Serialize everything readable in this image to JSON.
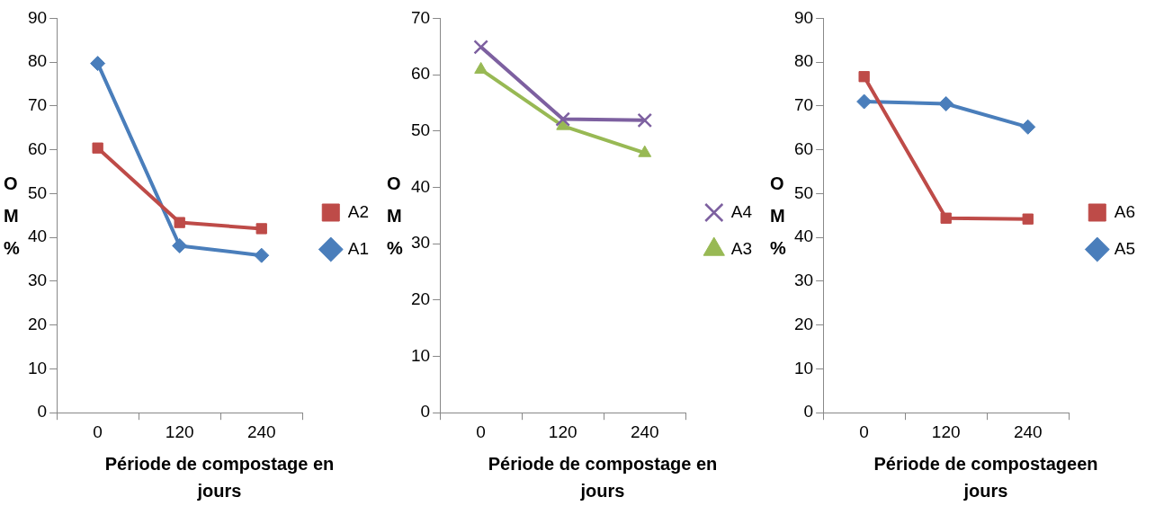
{
  "chart_data": [
    {
      "type": "line",
      "xlabel": "Période de compostage en jours",
      "ylabel": "O M %",
      "categories": [
        "0",
        "120",
        "240"
      ],
      "ylim": [
        0,
        90
      ],
      "yticks": [
        0,
        10,
        20,
        30,
        40,
        50,
        60,
        70,
        80,
        90
      ],
      "grid": false,
      "legend": "right",
      "series": [
        {
          "name": "A1",
          "color": "#4a7ebb",
          "marker": "diamond",
          "values": [
            79.7,
            38.1,
            35.9
          ]
        },
        {
          "name": "A2",
          "color": "#be4b48",
          "marker": "square",
          "values": [
            60.4,
            43.4,
            42.0
          ]
        }
      ]
    },
    {
      "type": "line",
      "xlabel": "Période de compostage en jours",
      "ylabel": "O M %",
      "categories": [
        "0",
        "120",
        "240"
      ],
      "ylim": [
        0,
        70
      ],
      "yticks": [
        0,
        10,
        20,
        30,
        40,
        50,
        60,
        70
      ],
      "grid": false,
      "legend": "right",
      "series": [
        {
          "name": "A3",
          "color": "#98b954",
          "marker": "triangle",
          "values": [
            60.9,
            50.9,
            46.1
          ]
        },
        {
          "name": "A4",
          "color": "#7d60a0",
          "marker": "cross",
          "values": [
            64.9,
            52.1,
            51.9
          ]
        }
      ]
    },
    {
      "type": "line",
      "xlabel": "Période  de compostageen jours",
      "ylabel": "O M %",
      "categories": [
        "0",
        "120",
        "240"
      ],
      "ylim": [
        0,
        90
      ],
      "yticks": [
        0,
        10,
        20,
        30,
        40,
        50,
        60,
        70,
        80,
        90
      ],
      "grid": false,
      "legend": "right",
      "series": [
        {
          "name": "A5",
          "color": "#4a7ebb",
          "marker": "diamond",
          "values": [
            71.0,
            70.5,
            65.2
          ]
        },
        {
          "name": "A6",
          "color": "#be4b48",
          "marker": "square",
          "values": [
            76.7,
            44.4,
            44.2
          ]
        }
      ]
    }
  ]
}
